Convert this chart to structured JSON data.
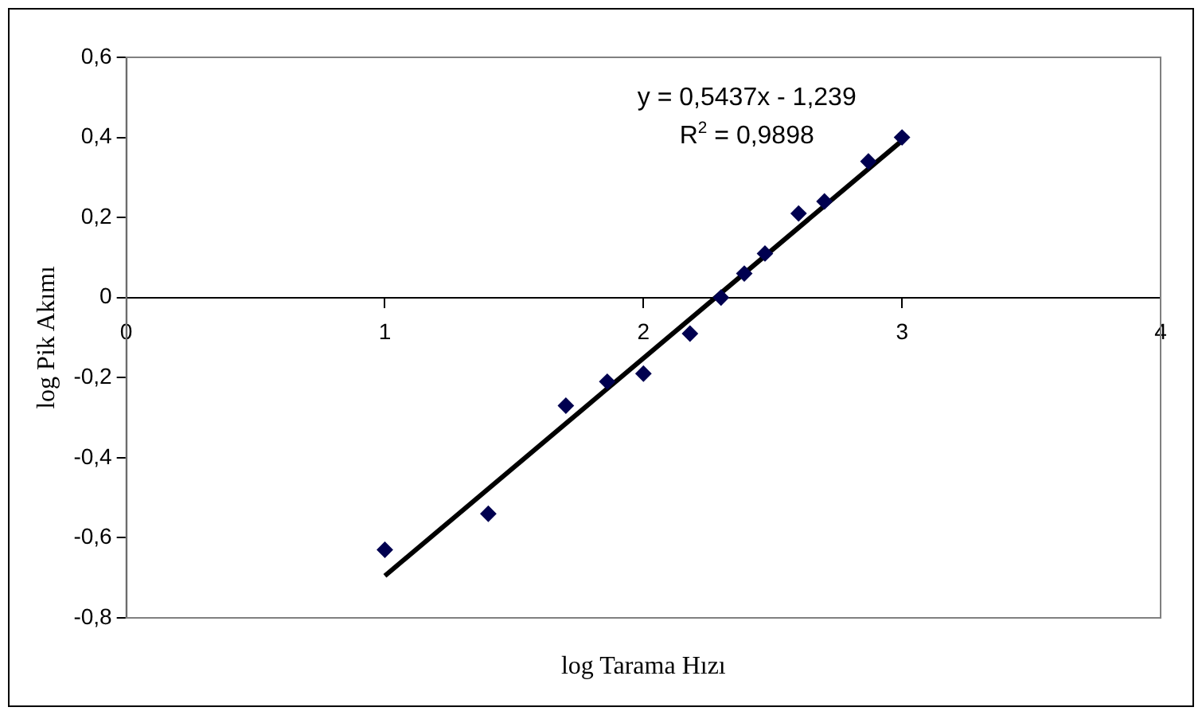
{
  "chart_data": {
    "type": "scatter",
    "xlabel": "log Tarama Hızı",
    "ylabel": "log Pik Akımı",
    "annotations": [
      "y = 0,5437x - 1,239",
      "R$^{2}$ = 0,9898"
    ],
    "xlim": [
      0,
      4
    ],
    "xticks": [
      0,
      1,
      2,
      3,
      4
    ],
    "ylim": [
      -0.8,
      0.6
    ],
    "yticks": [
      {
        "value": 0.6,
        "label": "0,6"
      },
      {
        "value": 0.4,
        "label": "0,4"
      },
      {
        "value": 0.2,
        "label": "0,2"
      },
      0,
      {
        "value": -0.2,
        "label": "-0,2"
      },
      {
        "value": -0.4,
        "label": "-0,4"
      },
      {
        "value": -0.6,
        "label": "-0,6"
      },
      {
        "value": -0.8,
        "label": "-0,8"
      }
    ],
    "grid": false,
    "legend": false,
    "marker": "diamond",
    "series": [
      {
        "color": "#000050",
        "x": [
          1.0,
          1.4,
          1.7,
          1.86,
          2.0,
          2.18,
          2.3,
          2.39,
          2.47,
          2.6,
          2.7,
          2.87,
          3.0
        ],
        "values": [
          -0.63,
          -0.54,
          -0.27,
          -0.21,
          -0.19,
          -0.09,
          0.0,
          0.06,
          0.11,
          0.21,
          0.24,
          0.34,
          0.4
        ]
      },
      {
        "type": "line",
        "color": "#000000",
        "marker": "none",
        "x": [
          1,
          3
        ],
        "values": [
          -0.695,
          0.392
        ]
      }
    ]
  }
}
